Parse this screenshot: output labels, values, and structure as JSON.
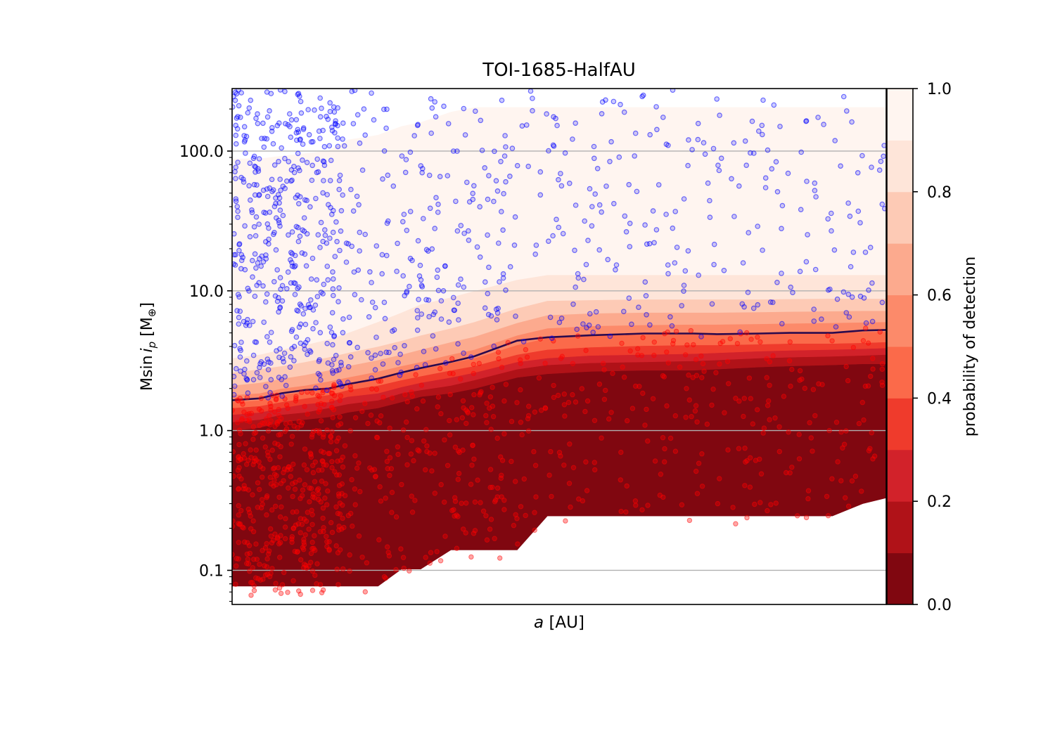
{
  "chart_data": {
    "type": "scatter",
    "title": "TOI-1685-HalfAU",
    "xlabel_italic": "a",
    "xlabel_rest": " [AU]",
    "ylabel_main": "Msin",
    "ylabel_sym": "i",
    "ylabel_sub": "p",
    "ylabel_unit": " [M",
    "ylabel_unit_sub": "⊕",
    "ylabel_close": "]",
    "x_scale": "log",
    "xlim": [
      0.001,
      0.5
    ],
    "y_scale": "log",
    "ylim": [
      0.057,
      280
    ],
    "ytick_labels": [
      "0.1",
      "1.0",
      "10.0",
      "100.0"
    ],
    "ytick_values": [
      0.1,
      1,
      10,
      100
    ],
    "grid": "horizontal",
    "colorbar": {
      "label": "probability of detection",
      "range": [
        0,
        1
      ],
      "tick_values": [
        0,
        0.2,
        0.4,
        0.6,
        0.8,
        1.0
      ],
      "tick_labels": [
        "0.0",
        "0.2",
        "0.4",
        "0.6",
        "0.8",
        "1.0"
      ],
      "levels": [
        0,
        0.1,
        0.2,
        0.3,
        0.4,
        0.5,
        0.6,
        0.7,
        0.8,
        0.9,
        1.0
      ],
      "colors": [
        "#800710",
        "#b01218",
        "#d2222a",
        "#ef3b2c",
        "#fb6a4a",
        "#fc8a6a",
        "#fcaa8e",
        "#fdcab5",
        "#fee5d9",
        "#fff5f0"
      ]
    },
    "detection_contours": {
      "x": [
        0.001,
        0.0013,
        0.0016,
        0.002,
        0.0025,
        0.003,
        0.004,
        0.005,
        0.006,
        0.008,
        0.01,
        0.015,
        0.02,
        0.03,
        0.05,
        0.08,
        0.1,
        0.15,
        0.2,
        0.3,
        0.4,
        0.5
      ],
      "bottom": [
        0.077,
        0.077,
        0.077,
        0.077,
        0.077,
        0.077,
        0.077,
        0.102,
        0.102,
        0.14,
        0.14,
        0.14,
        0.245,
        0.245,
        0.245,
        0.245,
        0.245,
        0.245,
        0.245,
        0.245,
        0.3,
        0.33
      ],
      "level_bounds": [
        {
          "level": 0.1,
          "y": [
            1.0,
            1.05,
            1.15,
            1.2,
            1.25,
            1.35,
            1.45,
            1.6,
            1.75,
            1.85,
            2.0,
            2.4,
            2.55,
            2.65,
            2.7,
            2.7,
            2.75,
            2.85,
            2.9,
            2.95,
            3.0,
            3.0
          ]
        },
        {
          "level": 0.2,
          "y": [
            1.15,
            1.2,
            1.3,
            1.35,
            1.45,
            1.55,
            1.65,
            1.85,
            1.95,
            2.1,
            2.3,
            2.75,
            2.95,
            3.05,
            3.1,
            3.15,
            3.2,
            3.3,
            3.35,
            3.4,
            3.45,
            3.5
          ]
        },
        {
          "level": 0.3,
          "y": [
            1.3,
            1.35,
            1.45,
            1.55,
            1.6,
            1.75,
            1.85,
            2.05,
            2.2,
            2.4,
            2.6,
            3.1,
            3.3,
            3.45,
            3.5,
            3.55,
            3.6,
            3.7,
            3.75,
            3.8,
            3.85,
            3.9
          ]
        },
        {
          "level": 0.4,
          "y": [
            1.45,
            1.5,
            1.6,
            1.7,
            1.8,
            1.95,
            2.1,
            2.3,
            2.45,
            2.7,
            2.9,
            3.5,
            3.8,
            3.95,
            4.05,
            4.1,
            4.1,
            4.15,
            4.2,
            4.2,
            4.25,
            4.3
          ]
        },
        {
          "level": 0.5,
          "y": [
            1.6,
            1.65,
            1.8,
            1.9,
            2.0,
            2.15,
            2.35,
            2.55,
            2.75,
            3.05,
            3.3,
            4.1,
            4.6,
            4.75,
            4.95,
            4.95,
            4.95,
            4.95,
            5.0,
            5.05,
            5.1,
            5.1
          ]
        },
        {
          "level": 0.6,
          "y": [
            1.8,
            1.85,
            2.0,
            2.1,
            2.25,
            2.4,
            2.65,
            2.9,
            3.1,
            3.5,
            3.8,
            4.8,
            5.4,
            5.6,
            5.7,
            5.75,
            5.75,
            5.8,
            5.85,
            5.9,
            5.95,
            6.0
          ]
        },
        {
          "level": 0.7,
          "y": [
            2.1,
            2.2,
            2.35,
            2.5,
            2.7,
            2.9,
            3.2,
            3.5,
            3.8,
            4.3,
            4.7,
            5.9,
            6.7,
            6.9,
            7.0,
            7.0,
            7.0,
            7.05,
            7.1,
            7.15,
            7.2,
            7.2
          ]
        },
        {
          "level": 0.8,
          "y": [
            2.6,
            2.75,
            2.9,
            3.1,
            3.35,
            3.6,
            4.0,
            4.4,
            4.8,
            5.4,
            6.0,
            7.5,
            8.5,
            8.6,
            8.7,
            8.7,
            8.7,
            8.7,
            8.75,
            8.8,
            8.8,
            8.8
          ]
        },
        {
          "level": 0.9,
          "y": [
            3.3,
            3.5,
            3.8,
            4.1,
            4.5,
            5.0,
            6.0,
            7.0,
            8.0,
            9.0,
            10.0,
            12.0,
            13.0,
            13.0,
            13.0,
            13.0,
            13.0,
            13.0,
            13.0,
            13.0,
            13.0,
            13.0
          ]
        }
      ],
      "top": [
        88,
        88,
        92,
        96,
        100,
        120,
        130,
        150,
        160,
        190,
        205,
        205,
        205,
        205,
        205,
        205,
        205,
        205,
        205,
        205,
        205,
        205
      ]
    },
    "detection_limit_line": {
      "x": [
        0.001,
        0.0013,
        0.0016,
        0.002,
        0.0025,
        0.003,
        0.004,
        0.005,
        0.006,
        0.008,
        0.01,
        0.015,
        0.02,
        0.03,
        0.05,
        0.08,
        0.1,
        0.15,
        0.2,
        0.3,
        0.4,
        0.5
      ],
      "y": [
        1.65,
        1.7,
        1.85,
        1.95,
        2.0,
        2.15,
        2.35,
        2.6,
        2.8,
        3.1,
        3.4,
        4.4,
        4.65,
        4.8,
        4.95,
        4.95,
        4.9,
        4.95,
        5.0,
        5.0,
        5.2,
        5.25
      ],
      "color": "#2b0a4d"
    },
    "scatter_series": [
      {
        "marker": "detected",
        "color": "#0000ff",
        "count": 900
      },
      {
        "marker": "undetected",
        "color": "#ff0000",
        "count": 900
      }
    ],
    "frame": {
      "background": "#ffffff",
      "grid_color": "#b0b0b0"
    }
  }
}
